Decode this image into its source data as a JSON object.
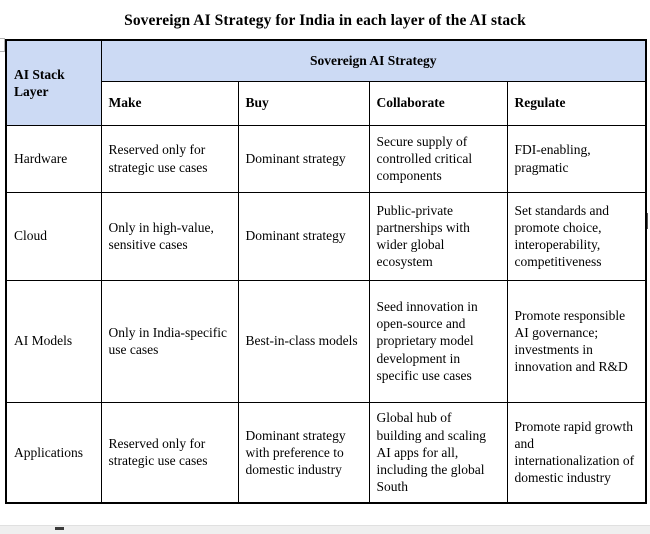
{
  "page": {
    "title": "Sovereign AI Strategy for India in each layer of the AI stack"
  },
  "table": {
    "corner_header": "AI Stack Layer",
    "group_header": "Sovereign AI Strategy",
    "columns": [
      "Make",
      "Buy",
      "Collaborate",
      "Regulate"
    ],
    "rows": [
      {
        "layer": "Hardware",
        "make": "Reserved only for strategic use cases",
        "buy": "Dominant strategy",
        "collaborate": "Secure supply of controlled critical components",
        "regulate": "FDI-enabling, pragmatic"
      },
      {
        "layer": "Cloud",
        "make": "Only in high-value, sensitive cases",
        "buy": "Dominant strategy",
        "collaborate": "Public-private partnerships with wider global ecosystem",
        "regulate": "Set standards and promote choice, interoperability, competitiveness"
      },
      {
        "layer": "AI Models",
        "make": "Only in India-specific use cases",
        "buy": "Best-in-class models",
        "collaborate": "Seed innovation in open-source and proprietary model development in specific use cases",
        "regulate": "Promote responsible AI governance; investments in innovation and R&D"
      },
      {
        "layer": "Applications",
        "make": "Reserved only for strategic use cases",
        "buy": "Dominant strategy with preference to domestic industry",
        "collaborate": "Global hub of building and scaling AI apps for all, including the global South",
        "regulate": "Promote rapid growth and internationalization of domestic industry"
      }
    ],
    "colors": {
      "header_bg": "#ccdaf4",
      "border": "#000000"
    }
  }
}
